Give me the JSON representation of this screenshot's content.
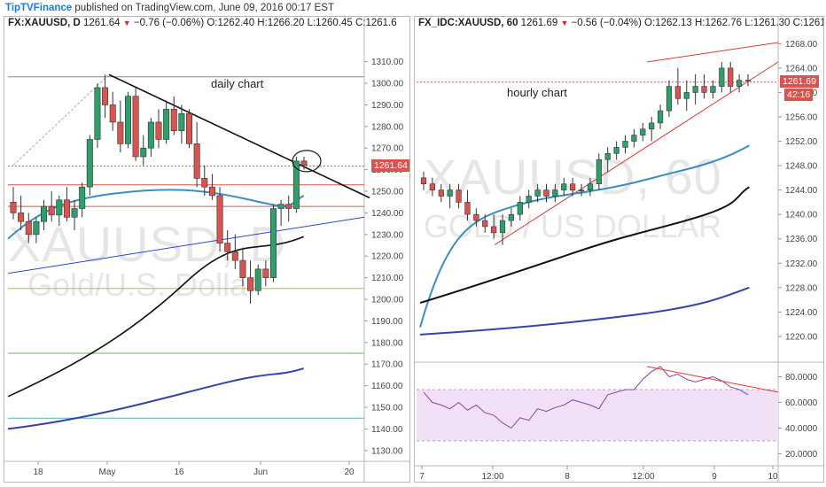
{
  "header": {
    "brand": "TipTVFinance",
    "published": " published on TradingView.com, June 09, 2016 00:17 EST"
  },
  "left": {
    "symbol": "FX:XAUUSD, D",
    "last": "1261.64",
    "change": "−0.76 (−0.06%)",
    "O": "1262.40",
    "H": "1266.20",
    "L": "1260.45",
    "C": "1261.6",
    "watermark1": "XAUUSD, D",
    "watermark2": "Gold/U.S. Dollar",
    "annotation": "daily chart",
    "price_tag": "1261.64",
    "colors": {
      "up": "#2e9e6b",
      "down": "#d9534f",
      "ma_fast": "#3a8fc0",
      "ma_mid": "#111111",
      "ma_slow": "#3344aa",
      "tag": "#d9534f"
    }
  },
  "right": {
    "symbol": "FX_IDC:XAUUSD, 60",
    "last": "1261.69",
    "change": "−0.56 (−0.04%)",
    "O": "1262.13",
    "H": "1262.76",
    "L": "1261.30",
    "C": "1261.69",
    "watermark1": "XAUUSD, 60",
    "watermark2": "GOLD / US DOLLAR",
    "annotation": "hourly chart",
    "price_tag": "1261.69",
    "countdown": "42:16",
    "colors": {
      "rsi": "#8844aa",
      "rsi_band": "#f1e0f6"
    }
  },
  "chart_data": [
    {
      "type": "candlestick",
      "title": "FX:XAUUSD, D",
      "x_tick_labels": [
        "18",
        "May",
        "16",
        "Jun",
        "20"
      ],
      "y_tick_labels": [
        "1310.00",
        "1300.00",
        "1290.00",
        "1280.00",
        "1270.00",
        "1260.00",
        "1250.00",
        "1240.00",
        "1230.00",
        "1220.00",
        "1210.00",
        "1200.00",
        "1190.00",
        "1180.00",
        "1170.00",
        "1160.00",
        "1150.00",
        "1140.00",
        "1130.00"
      ],
      "ylim": [
        1125,
        1316
      ],
      "candles_ohlc": [
        [
          1245,
          1252,
          1237,
          1240
        ],
        [
          1240,
          1248,
          1232,
          1236
        ],
        [
          1236,
          1240,
          1226,
          1230
        ],
        [
          1230,
          1238,
          1226,
          1236
        ],
        [
          1236,
          1246,
          1232,
          1243
        ],
        [
          1243,
          1250,
          1236,
          1239
        ],
        [
          1239,
          1248,
          1234,
          1246
        ],
        [
          1246,
          1252,
          1236,
          1238
        ],
        [
          1238,
          1246,
          1232,
          1242
        ],
        [
          1242,
          1254,
          1238,
          1252
        ],
        [
          1252,
          1276,
          1248,
          1274
        ],
        [
          1274,
          1300,
          1270,
          1298
        ],
        [
          1298,
          1304,
          1284,
          1290
        ],
        [
          1290,
          1296,
          1278,
          1282
        ],
        [
          1282,
          1292,
          1268,
          1272
        ],
        [
          1272,
          1296,
          1270,
          1294
        ],
        [
          1294,
          1298,
          1264,
          1266
        ],
        [
          1266,
          1276,
          1262,
          1270
        ],
        [
          1270,
          1284,
          1266,
          1282
        ],
        [
          1282,
          1288,
          1270,
          1274
        ],
        [
          1274,
          1292,
          1272,
          1288
        ],
        [
          1288,
          1294,
          1276,
          1278
        ],
        [
          1278,
          1290,
          1272,
          1286
        ],
        [
          1286,
          1288,
          1270,
          1272
        ],
        [
          1272,
          1282,
          1252,
          1256
        ],
        [
          1256,
          1262,
          1248,
          1252
        ],
        [
          1252,
          1258,
          1246,
          1248
        ],
        [
          1248,
          1252,
          1222,
          1226
        ],
        [
          1226,
          1232,
          1218,
          1222
        ],
        [
          1222,
          1230,
          1214,
          1218
        ],
        [
          1218,
          1224,
          1206,
          1210
        ],
        [
          1210,
          1218,
          1198,
          1204
        ],
        [
          1204,
          1216,
          1202,
          1214
        ],
        [
          1214,
          1218,
          1206,
          1210
        ],
        [
          1210,
          1244,
          1208,
          1242
        ],
        [
          1242,
          1246,
          1234,
          1244
        ],
        [
          1244,
          1248,
          1236,
          1242
        ],
        [
          1242,
          1266,
          1240,
          1264
        ],
        [
          1264,
          1266,
          1260,
          1262
        ]
      ],
      "horizontal_levels": [
        1261.64,
        1253,
        1243,
        1205,
        1175,
        1145
      ],
      "moving_averages": {
        "blue_50": [
          [
            1225,
            1228
          ],
          [
            1240,
            1248
          ]
        ],
        "black_100": [
          [
            1155,
            1170
          ],
          [
            1229,
            1230
          ]
        ],
        "navy_200": [
          [
            1140,
            1142
          ],
          [
            1168,
            1168
          ]
        ]
      }
    },
    {
      "type": "candlestick",
      "title": "FX_IDC:XAUUSD, 60",
      "x_tick_labels": [
        "7",
        "12:00",
        "8",
        "12:00",
        "9",
        "10"
      ],
      "y_tick_labels": [
        "1268.00",
        "1264.00",
        "1260.00",
        "1256.00",
        "1252.00",
        "1248.00",
        "1244.00",
        "1240.00",
        "1236.00",
        "1232.00",
        "1228.00",
        "1224.00",
        "1220.00"
      ],
      "ylim": [
        1216.5,
        1269.5
      ],
      "candles_ohlc": [
        [
          1246,
          1247,
          1244,
          1245
        ],
        [
          1245,
          1246,
          1243,
          1244
        ],
        [
          1244,
          1245,
          1242,
          1243
        ],
        [
          1243,
          1245,
          1241,
          1244
        ],
        [
          1244,
          1245,
          1241,
          1242
        ],
        [
          1242,
          1244,
          1239,
          1240
        ],
        [
          1240,
          1241,
          1238,
          1239
        ],
        [
          1239,
          1240,
          1237,
          1238
        ],
        [
          1238,
          1240,
          1236,
          1237
        ],
        [
          1237,
          1240,
          1235,
          1239
        ],
        [
          1239,
          1241,
          1238,
          1240
        ],
        [
          1240,
          1243,
          1239,
          1242
        ],
        [
          1242,
          1244,
          1241,
          1243
        ],
        [
          1243,
          1245,
          1242,
          1244
        ],
        [
          1244,
          1245,
          1242,
          1243
        ],
        [
          1243,
          1245,
          1242,
          1244
        ],
        [
          1244,
          1246,
          1243,
          1245
        ],
        [
          1245,
          1246,
          1243,
          1244
        ],
        [
          1244,
          1245,
          1243,
          1244
        ],
        [
          1244,
          1246,
          1243,
          1245
        ],
        [
          1245,
          1250,
          1244,
          1249
        ],
        [
          1249,
          1251,
          1247,
          1250
        ],
        [
          1250,
          1252,
          1249,
          1251
        ],
        [
          1251,
          1253,
          1250,
          1252
        ],
        [
          1252,
          1254,
          1251,
          1253
        ],
        [
          1253,
          1255,
          1252,
          1254
        ],
        [
          1254,
          1256,
          1252,
          1255
        ],
        [
          1255,
          1258,
          1254,
          1257
        ],
        [
          1257,
          1262,
          1256,
          1261
        ],
        [
          1261,
          1264,
          1258,
          1259
        ],
        [
          1259,
          1262,
          1257,
          1260
        ],
        [
          1260,
          1263,
          1258,
          1261
        ],
        [
          1261,
          1263,
          1259,
          1260
        ],
        [
          1260,
          1262,
          1259,
          1261
        ],
        [
          1261,
          1265,
          1260,
          1264
        ],
        [
          1264,
          1265,
          1260,
          1261
        ],
        [
          1261,
          1263,
          1260,
          1262
        ],
        [
          1262,
          1263,
          1261,
          1262
        ]
      ],
      "moving_averages": {
        "blue": [
          [
            1221,
            1222
          ],
          [
            1251,
            1252
          ]
        ],
        "black": [
          [
            1225,
            1226
          ],
          [
            1244,
            1245
          ]
        ],
        "navy": [
          [
            1220,
            1221
          ],
          [
            1228,
            1228
          ]
        ]
      },
      "rsi": {
        "y_tick_labels": [
          "80.0000",
          "60.0000",
          "40.0000",
          "20.0000"
        ],
        "ylim": [
          12,
          90
        ],
        "bands": [
          30,
          70
        ],
        "values": [
          68,
          60,
          58,
          55,
          60,
          54,
          58,
          52,
          50,
          44,
          40,
          48,
          46,
          55,
          53,
          56,
          58,
          62,
          60,
          58,
          55,
          66,
          68,
          70,
          70,
          78,
          84,
          88,
          80,
          82,
          78,
          76,
          78,
          80,
          77,
          72,
          70,
          66
        ]
      }
    }
  ]
}
